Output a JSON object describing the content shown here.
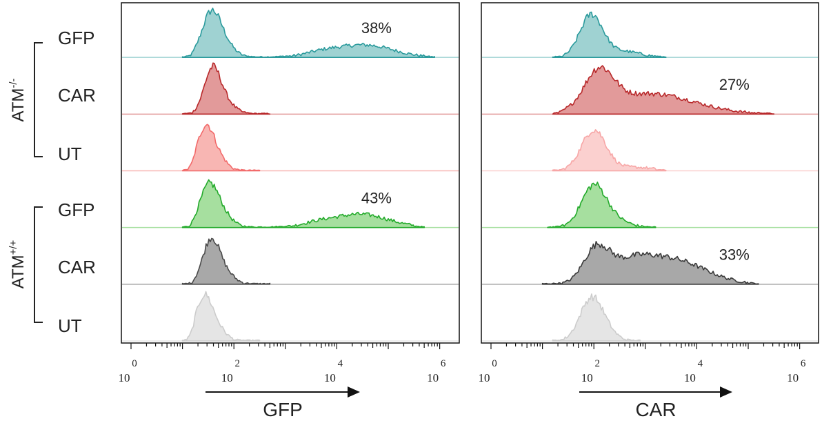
{
  "chart_data": {
    "type": "histogram",
    "groups": [
      {
        "label_base": "ATM",
        "label_sup": "-/-",
        "rows": [
          "GFP",
          "CAR",
          "UT"
        ]
      },
      {
        "label_base": "ATM",
        "label_sup": "+/+",
        "rows": [
          "GFP",
          "CAR",
          "UT"
        ]
      }
    ],
    "x_scale": "log",
    "xlim": [
      0,
      6.3
    ],
    "x_ticks": [
      {
        "base": "10",
        "exp": "0",
        "value": 0
      },
      {
        "base": "10",
        "exp": "2",
        "value": 2
      },
      {
        "base": "10",
        "exp": "4",
        "value": 4
      },
      {
        "base": "10",
        "exp": "6",
        "value": 6
      }
    ],
    "panels": [
      {
        "xlabel": "GFP",
        "tracks": [
          {
            "row": "GFP",
            "group": "ATM-/-",
            "color": "#2a9a9c",
            "fill": "#9fd2d2",
            "annotation": "38%",
            "peaks": [
              {
                "c": 1.55,
                "w": 0.18,
                "h": 0.8
              },
              {
                "c": 1.8,
                "w": 0.2,
                "h": 0.25
              },
              {
                "c": 4.55,
                "w": 0.55,
                "h": 0.24
              },
              {
                "c": 3.7,
                "w": 0.35,
                "h": 0.08
              }
            ],
            "range": [
              1.0,
              5.9
            ]
          },
          {
            "row": "CAR",
            "group": "ATM-/-",
            "color": "#b8282a",
            "fill": "#e29a9a",
            "annotation": "",
            "peaks": [
              {
                "c": 1.58,
                "w": 0.16,
                "h": 0.86
              },
              {
                "c": 1.85,
                "w": 0.18,
                "h": 0.2
              }
            ],
            "range": [
              1.0,
              2.7
            ]
          },
          {
            "row": "UT",
            "group": "ATM-/-",
            "color": "#f26a6a",
            "fill": "#f8b6b3",
            "annotation": "",
            "peaks": [
              {
                "c": 1.45,
                "w": 0.16,
                "h": 0.86
              },
              {
                "c": 1.72,
                "w": 0.16,
                "h": 0.2
              }
            ],
            "range": [
              1.0,
              2.5
            ]
          },
          {
            "row": "GFP",
            "group": "ATM+/+",
            "color": "#22aa2a",
            "fill": "#a6df9f",
            "annotation": "43%",
            "peaks": [
              {
                "c": 1.52,
                "w": 0.18,
                "h": 0.82
              },
              {
                "c": 1.82,
                "w": 0.18,
                "h": 0.18
              },
              {
                "c": 4.45,
                "w": 0.55,
                "h": 0.26
              },
              {
                "c": 3.6,
                "w": 0.3,
                "h": 0.06
              }
            ],
            "range": [
              1.0,
              5.7
            ]
          },
          {
            "row": "CAR",
            "group": "ATM+/+",
            "color": "#4a4a4a",
            "fill": "#a8a8a8",
            "annotation": "",
            "peaks": [
              {
                "c": 1.55,
                "w": 0.16,
                "h": 0.84
              },
              {
                "c": 1.82,
                "w": 0.18,
                "h": 0.22
              }
            ],
            "range": [
              1.0,
              2.7
            ]
          },
          {
            "row": "UT",
            "group": "ATM+/+",
            "color": "#cccccc",
            "fill": "#e5e5e5",
            "annotation": "",
            "peaks": [
              {
                "c": 1.42,
                "w": 0.16,
                "h": 0.86
              },
              {
                "c": 1.7,
                "w": 0.16,
                "h": 0.2
              }
            ],
            "range": [
              1.0,
              2.5
            ]
          }
        ]
      },
      {
        "xlabel": "CAR",
        "tracks": [
          {
            "row": "GFP",
            "group": "ATM-/-",
            "color": "#2a9a9c",
            "fill": "#9fd2d2",
            "annotation": "",
            "peaks": [
              {
                "c": 1.95,
                "w": 0.22,
                "h": 0.82
              },
              {
                "c": 2.55,
                "w": 0.35,
                "h": 0.12
              }
            ],
            "range": [
              1.2,
              3.4
            ]
          },
          {
            "row": "CAR",
            "group": "ATM-/-",
            "color": "#b8282a",
            "fill": "#e29a9a",
            "annotation": "27%",
            "peaks": [
              {
                "c": 2.1,
                "w": 0.28,
                "h": 0.72
              },
              {
                "c": 3.1,
                "w": 0.85,
                "h": 0.4
              }
            ],
            "range": [
              1.2,
              5.5
            ]
          },
          {
            "row": "UT",
            "group": "ATM-/-",
            "color": "#f7a6a6",
            "fill": "#fbd0cf",
            "annotation": "",
            "peaks": [
              {
                "c": 2.0,
                "w": 0.24,
                "h": 0.8
              },
              {
                "c": 2.8,
                "w": 0.35,
                "h": 0.07
              }
            ],
            "range": [
              1.2,
              3.4
            ]
          },
          {
            "row": "GFP",
            "group": "ATM+/+",
            "color": "#22aa2a",
            "fill": "#a6df9f",
            "annotation": "",
            "peaks": [
              {
                "c": 2.0,
                "w": 0.24,
                "h": 0.82
              },
              {
                "c": 2.45,
                "w": 0.25,
                "h": 0.12
              }
            ],
            "range": [
              1.1,
              3.2
            ]
          },
          {
            "row": "CAR",
            "group": "ATM+/+",
            "color": "#3a3a3a",
            "fill": "#a8a8a8",
            "annotation": "33%",
            "peaks": [
              {
                "c": 2.05,
                "w": 0.25,
                "h": 0.66
              },
              {
                "c": 3.5,
                "w": 0.65,
                "h": 0.48
              },
              {
                "c": 2.7,
                "w": 0.4,
                "h": 0.3
              }
            ],
            "range": [
              1.0,
              5.2
            ]
          },
          {
            "row": "UT",
            "group": "ATM+/+",
            "color": "#cccccc",
            "fill": "#e5e5e5",
            "annotation": "",
            "peaks": [
              {
                "c": 1.95,
                "w": 0.22,
                "h": 0.82
              },
              {
                "c": 2.25,
                "w": 0.2,
                "h": 0.12
              }
            ],
            "range": [
              1.2,
              2.9
            ]
          }
        ]
      }
    ]
  }
}
